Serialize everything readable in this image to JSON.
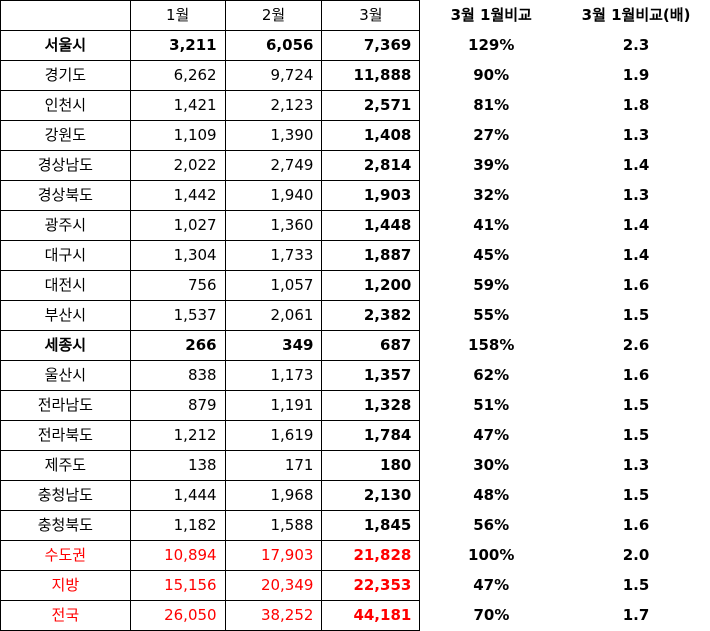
{
  "colors": {
    "text": "#000000",
    "highlight_red": "#ff0000",
    "border": "#000000"
  },
  "headers": {
    "region": "",
    "jan": "1월",
    "feb": "2월",
    "mar": "3월",
    "ratio_pct": "3월 1월비교",
    "ratio_x": "3월 1월비교(배)"
  },
  "rows": [
    {
      "name": "서울시",
      "jan": "3,211",
      "feb": "6,056",
      "mar": "7,369",
      "pct": "129%",
      "mult": "2.3"
    },
    {
      "name": "경기도",
      "jan": "6,262",
      "feb": "9,724",
      "mar": "11,888",
      "pct": "90%",
      "mult": "1.9"
    },
    {
      "name": "인천시",
      "jan": "1,421",
      "feb": "2,123",
      "mar": "2,571",
      "pct": "81%",
      "mult": "1.8"
    },
    {
      "name": "강원도",
      "jan": "1,109",
      "feb": "1,390",
      "mar": "1,408",
      "pct": "27%",
      "mult": "1.3"
    },
    {
      "name": "경상남도",
      "jan": "2,022",
      "feb": "2,749",
      "mar": "2,814",
      "pct": "39%",
      "mult": "1.4"
    },
    {
      "name": "경상북도",
      "jan": "1,442",
      "feb": "1,940",
      "mar": "1,903",
      "pct": "32%",
      "mult": "1.3"
    },
    {
      "name": "광주시",
      "jan": "1,027",
      "feb": "1,360",
      "mar": "1,448",
      "pct": "41%",
      "mult": "1.4"
    },
    {
      "name": "대구시",
      "jan": "1,304",
      "feb": "1,733",
      "mar": "1,887",
      "pct": "45%",
      "mult": "1.4"
    },
    {
      "name": "대전시",
      "jan": "756",
      "feb": "1,057",
      "mar": "1,200",
      "pct": "59%",
      "mult": "1.6"
    },
    {
      "name": "부산시",
      "jan": "1,537",
      "feb": "2,061",
      "mar": "2,382",
      "pct": "55%",
      "mult": "1.5"
    },
    {
      "name": "세종시",
      "jan": "266",
      "feb": "349",
      "mar": "687",
      "pct": "158%",
      "mult": "2.6"
    },
    {
      "name": "울산시",
      "jan": "838",
      "feb": "1,173",
      "mar": "1,357",
      "pct": "62%",
      "mult": "1.6"
    },
    {
      "name": "전라남도",
      "jan": "879",
      "feb": "1,191",
      "mar": "1,328",
      "pct": "51%",
      "mult": "1.5"
    },
    {
      "name": "전라북도",
      "jan": "1,212",
      "feb": "1,619",
      "mar": "1,784",
      "pct": "47%",
      "mult": "1.5"
    },
    {
      "name": "제주도",
      "jan": "138",
      "feb": "171",
      "mar": "180",
      "pct": "30%",
      "mult": "1.3"
    },
    {
      "name": "충청남도",
      "jan": "1,444",
      "feb": "1,968",
      "mar": "2,130",
      "pct": "48%",
      "mult": "1.5"
    },
    {
      "name": "충청북도",
      "jan": "1,182",
      "feb": "1,588",
      "mar": "1,845",
      "pct": "56%",
      "mult": "1.6"
    }
  ],
  "summary": [
    {
      "name": "수도권",
      "jan": "10,894",
      "feb": "17,903",
      "mar": "21,828",
      "pct": "100%",
      "mult": "2.0"
    },
    {
      "name": "지방",
      "jan": "15,156",
      "feb": "20,349",
      "mar": "22,353",
      "pct": "47%",
      "mult": "1.5"
    },
    {
      "name": "전국",
      "jan": "26,050",
      "feb": "38,252",
      "mar": "44,181",
      "pct": "70%",
      "mult": "1.7"
    }
  ]
}
